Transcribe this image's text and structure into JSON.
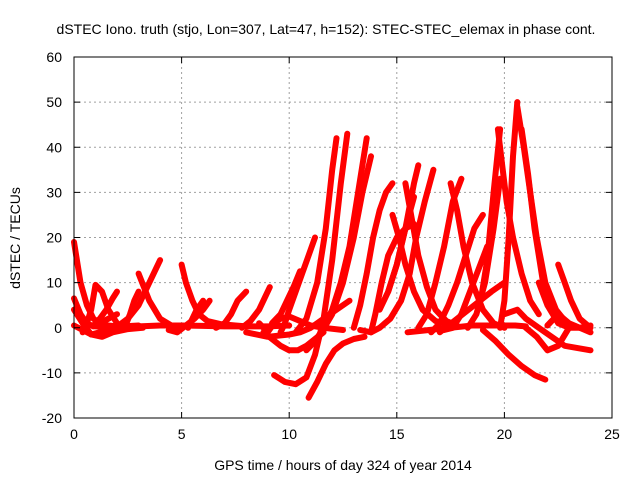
{
  "chart_data": {
    "type": "scatter",
    "title": "dSTEC Iono. truth (stjo, Lon=307, Lat=47, h=152): STEC-STEC_elemax in phase cont.",
    "xlabel": "GPS time / hours of day 324 of year 2014",
    "ylabel": "dSTEC  / TECUs",
    "xlim": [
      0,
      25
    ],
    "ylim": [
      -20,
      60
    ],
    "xticks": [
      0,
      5,
      10,
      15,
      20,
      25
    ],
    "yticks": [
      -20,
      -10,
      0,
      10,
      20,
      30,
      40,
      50,
      60
    ],
    "grid": true,
    "marker": "+",
    "color": "#ff0000",
    "series": [
      {
        "x": [
          0.0,
          0.3,
          0.6,
          0.9,
          1.2,
          1.6,
          2.0
        ],
        "y": [
          19.0,
          10.0,
          5.0,
          2.0,
          1.0,
          0.5,
          0.3
        ]
      },
      {
        "x": [
          0.0,
          0.3,
          0.6,
          0.9,
          1.2,
          1.6,
          2.0
        ],
        "y": [
          6.5,
          3.0,
          1.0,
          0.3,
          1.0,
          2.0,
          3.0
        ]
      },
      {
        "x": [
          0.0,
          0.4,
          0.8,
          1.3,
          1.8,
          2.5,
          3.2
        ],
        "y": [
          4.0,
          1.0,
          -1.5,
          -2.0,
          -1.0,
          -0.3,
          0.0
        ]
      },
      {
        "x": [
          0.0,
          0.4,
          0.8,
          1.2,
          1.7,
          2.3,
          3.0
        ],
        "y": [
          0.5,
          -0.5,
          -1.5,
          -1.0,
          0.0,
          0.3,
          0.5
        ]
      },
      {
        "x": [
          0.4,
          0.6,
          0.8,
          1.0,
          1.3,
          1.6,
          2.0
        ],
        "y": [
          -1.0,
          1.0,
          4.0,
          9.5,
          8.0,
          4.0,
          1.0
        ]
      },
      {
        "x": [
          0.9,
          1.2,
          1.5,
          1.8,
          2.0
        ],
        "y": [
          0.5,
          2.0,
          4.0,
          6.5,
          8.0
        ]
      },
      {
        "x": [
          1.5,
          2.0,
          2.5,
          3.0,
          3.4,
          3.8,
          4.0
        ],
        "y": [
          0.0,
          0.2,
          2.0,
          5.0,
          9.0,
          13.0,
          15.0
        ]
      },
      {
        "x": [
          2.4,
          2.6,
          2.8,
          3.0
        ],
        "y": [
          0.5,
          3.0,
          6.0,
          8.0
        ]
      },
      {
        "x": [
          3.0,
          3.5,
          4.0,
          4.6,
          5.0
        ],
        "y": [
          12.0,
          6.0,
          2.0,
          0.3,
          0.0
        ]
      },
      {
        "x": [
          1.0,
          2.0,
          3.0,
          4.0,
          5.0,
          6.0,
          7.0,
          8.0,
          9.0,
          10.0
        ],
        "y": [
          0.3,
          0.0,
          0.3,
          0.5,
          0.5,
          0.4,
          0.3,
          0.3,
          0.3,
          0.5
        ]
      },
      {
        "x": [
          5.0,
          5.2,
          5.5,
          5.8,
          6.2,
          6.8,
          7.5,
          8.0
        ],
        "y": [
          14.0,
          10.0,
          6.0,
          3.0,
          1.5,
          0.8,
          0.5,
          0.3
        ]
      },
      {
        "x": [
          4.4,
          4.8,
          5.2,
          5.6,
          6.0,
          6.3
        ],
        "y": [
          -0.5,
          -1.0,
          0.5,
          2.0,
          4.0,
          6.0
        ]
      },
      {
        "x": [
          5.3,
          5.5,
          5.7,
          6.0
        ],
        "y": [
          0.0,
          2.0,
          4.0,
          6.0
        ]
      },
      {
        "x": [
          6.6,
          7.0,
          7.3,
          7.6,
          8.0
        ],
        "y": [
          0.0,
          1.0,
          3.0,
          6.0,
          8.0
        ]
      },
      {
        "x": [
          7.8,
          8.2,
          8.6,
          8.9,
          9.1
        ],
        "y": [
          0.0,
          1.5,
          4.0,
          7.0,
          9.0
        ]
      },
      {
        "x": [
          8.6,
          9.0,
          9.3,
          9.6,
          10.0,
          10.5,
          11.0,
          11.6,
          12.5
        ],
        "y": [
          1.0,
          -1.0,
          1.0,
          2.0,
          2.5,
          1.5,
          0.5,
          0.0,
          -0.5
        ]
      },
      {
        "x": [
          8.0,
          9.0,
          10.0,
          10.5,
          11.0,
          11.6,
          12.2,
          12.8
        ],
        "y": [
          -1.0,
          -2.0,
          -1.5,
          -1.0,
          0.0,
          2.0,
          4.0,
          6.0
        ]
      },
      {
        "x": [
          9.2,
          9.6,
          9.9,
          10.2,
          10.5
        ],
        "y": [
          1.0,
          3.0,
          6.0,
          9.0,
          12.5
        ]
      },
      {
        "x": [
          9.6,
          9.8,
          10.0,
          10.3,
          10.6,
          10.9,
          11.2
        ],
        "y": [
          -1.0,
          1.0,
          4.0,
          8.0,
          12.0,
          16.0,
          20.0
        ]
      },
      {
        "x": [
          8.8,
          9.2,
          9.6,
          10.0,
          10.4,
          10.8,
          11.2,
          11.6
        ],
        "y": [
          -1.0,
          -2.5,
          -4.0,
          -5.0,
          -5.0,
          -4.0,
          -2.5,
          -1.0
        ]
      },
      {
        "x": [
          9.3,
          9.8,
          10.3,
          10.8,
          11.2,
          11.6,
          12.0,
          12.4,
          12.7
        ],
        "y": [
          -10.5,
          -12.0,
          -12.5,
          -11.0,
          -6.0,
          2.0,
          15.0,
          32.0,
          43.0
        ]
      },
      {
        "x": [
          10.3,
          10.8,
          11.3,
          11.7,
          12.0,
          12.2
        ],
        "y": [
          -1.0,
          2.0,
          10.0,
          22.0,
          35.0,
          42.0
        ]
      },
      {
        "x": [
          10.9,
          11.3,
          11.7,
          12.1,
          12.5,
          13.0,
          13.5
        ],
        "y": [
          -15.5,
          -12.0,
          -8.0,
          -5.0,
          -3.5,
          -2.5,
          -2.0
        ]
      },
      {
        "x": [
          10.8,
          11.2,
          11.6,
          12.0,
          12.4,
          12.8,
          13.2,
          13.6
        ],
        "y": [
          -5.0,
          -3.0,
          0.0,
          4.0,
          10.0,
          18.0,
          30.0,
          42.0
        ]
      },
      {
        "x": [
          11.5,
          12.0,
          12.5,
          13.0,
          13.4,
          13.8
        ],
        "y": [
          -1.0,
          3.0,
          10.0,
          20.0,
          30.0,
          38.0
        ]
      },
      {
        "x": [
          13.0,
          13.3,
          13.6,
          13.9,
          14.2,
          14.5,
          14.8
        ],
        "y": [
          0.0,
          5.0,
          12.0,
          20.0,
          26.0,
          30.0,
          32.0
        ]
      },
      {
        "x": [
          13.8,
          14.0,
          14.3,
          14.6,
          15.0,
          15.4,
          15.8
        ],
        "y": [
          -1.0,
          3.0,
          10.0,
          16.0,
          20.0,
          22.0,
          23.0
        ]
      },
      {
        "x": [
          14.2,
          14.6,
          15.0,
          15.4,
          15.8
        ],
        "y": [
          4.0,
          8.0,
          14.0,
          22.0,
          29.0
        ]
      },
      {
        "x": [
          14.6,
          15.0,
          15.4,
          15.8,
          16.0
        ],
        "y": [
          8.0,
          14.0,
          22.0,
          32.0,
          36.0
        ]
      },
      {
        "x": [
          13.3,
          13.8,
          14.2,
          14.7,
          15.2,
          15.6,
          15.9,
          16.3,
          16.7
        ],
        "y": [
          -0.5,
          -1.0,
          0.0,
          2.0,
          6.0,
          12.0,
          20.0,
          28.0,
          35.0
        ]
      },
      {
        "x": [
          14.8,
          15.1,
          15.4,
          15.8,
          16.2,
          16.8,
          17.5
        ],
        "y": [
          25.0,
          20.0,
          14.0,
          8.0,
          4.0,
          1.5,
          0.5
        ]
      },
      {
        "x": [
          15.4,
          15.7,
          16.0,
          16.4,
          16.8,
          17.3,
          17.8
        ],
        "y": [
          32.0,
          24.0,
          16.0,
          9.0,
          4.0,
          1.5,
          0.5
        ]
      },
      {
        "x": [
          16.0,
          16.4,
          16.8,
          17.2,
          17.6,
          18.0
        ],
        "y": [
          0.0,
          3.0,
          10.0,
          18.0,
          28.0,
          33.0
        ]
      },
      {
        "x": [
          16.6,
          17.0,
          17.4,
          17.8,
          18.2,
          18.6,
          19.0
        ],
        "y": [
          -1.0,
          1.0,
          5.0,
          10.0,
          16.0,
          22.0,
          25.0
        ]
      },
      {
        "x": [
          17.5,
          17.8,
          18.1,
          18.5,
          19.0,
          19.5,
          20.0
        ],
        "y": [
          32.0,
          26.0,
          18.0,
          10.0,
          4.0,
          1.0,
          0.0
        ]
      },
      {
        "x": [
          17.2,
          17.6,
          18.0,
          18.4,
          18.8,
          19.2
        ],
        "y": [
          -0.5,
          0.0,
          3.0,
          8.0,
          13.0,
          18.0
        ]
      },
      {
        "x": [
          17.0,
          17.8,
          18.6,
          19.4,
          20.0
        ],
        "y": [
          -1.0,
          2.0,
          5.0,
          8.0,
          10.0
        ]
      },
      {
        "x": [
          15.5,
          16.5,
          17.5,
          18.5,
          19.5,
          20.5,
          21.0
        ],
        "y": [
          -1.0,
          -0.5,
          0.0,
          0.5,
          0.5,
          0.5,
          0.3
        ]
      },
      {
        "x": [
          18.3,
          18.7,
          19.1,
          19.5,
          19.8
        ],
        "y": [
          0.0,
          3.0,
          10.0,
          22.0,
          33.0
        ]
      },
      {
        "x": [
          18.9,
          19.2,
          19.5,
          19.8
        ],
        "y": [
          6.0,
          15.0,
          30.0,
          44.0
        ]
      },
      {
        "x": [
          19.7,
          19.9,
          20.1,
          20.4,
          20.8,
          21.2,
          21.6
        ],
        "y": [
          44.0,
          36.0,
          28.0,
          20.0,
          12.0,
          6.0,
          3.0
        ]
      },
      {
        "x": [
          19.8,
          20.0,
          20.2,
          20.4,
          20.6
        ],
        "y": [
          0.0,
          6.0,
          20.0,
          38.0,
          50.0
        ]
      },
      {
        "x": [
          20.6,
          20.9,
          21.2,
          21.5,
          21.9,
          22.4,
          22.9
        ],
        "y": [
          49.0,
          40.0,
          30.0,
          20.0,
          10.0,
          4.0,
          1.0
        ]
      },
      {
        "x": [
          20.8,
          21.1,
          21.4,
          21.8,
          22.2,
          22.7
        ],
        "y": [
          44.0,
          34.0,
          22.0,
          10.0,
          4.0,
          1.0
        ]
      },
      {
        "x": [
          19.0,
          19.6,
          20.2,
          20.8,
          21.4,
          21.9
        ],
        "y": [
          -0.5,
          -3.0,
          -6.0,
          -8.5,
          -10.5,
          -11.5
        ]
      },
      {
        "x": [
          20.0,
          20.6,
          21.0,
          21.6,
          22.2,
          22.8,
          23.4,
          24.0
        ],
        "y": [
          3.0,
          4.0,
          2.0,
          0.0,
          -2.0,
          -4.0,
          -4.5,
          -5.0
        ]
      },
      {
        "x": [
          21.0,
          21.5,
          22.0,
          22.5,
          23.0
        ],
        "y": [
          0.0,
          -2.0,
          -5.0,
          -4.0,
          0.0
        ]
      },
      {
        "x": [
          22.0,
          22.5,
          23.0,
          23.5,
          24.0
        ],
        "y": [
          0.5,
          3.0,
          1.0,
          0.0,
          -1.0
        ]
      },
      {
        "x": [
          22.5,
          22.8,
          23.1,
          23.5,
          24.0
        ],
        "y": [
          14.0,
          10.0,
          6.0,
          2.0,
          0.0
        ]
      },
      {
        "x": [
          21.6,
          22.0,
          22.5,
          23.0,
          23.5,
          24.0
        ],
        "y": [
          10.0,
          5.0,
          1.0,
          0.0,
          0.0,
          0.5
        ]
      }
    ]
  }
}
